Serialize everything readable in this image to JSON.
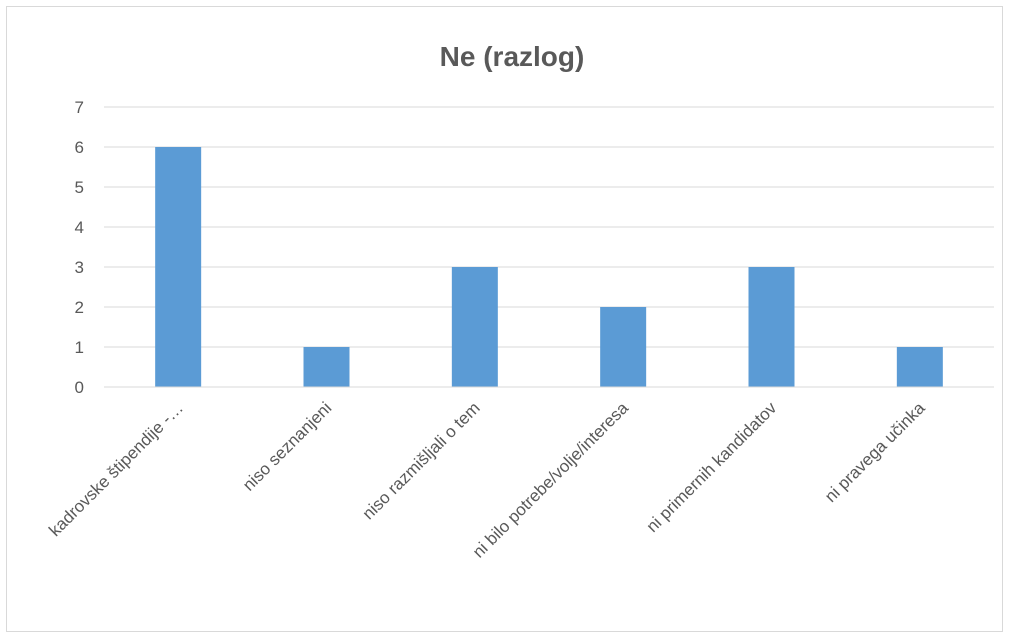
{
  "chart_data": {
    "type": "bar",
    "title": "Ne (razlog)",
    "xlabel": "",
    "ylabel": "",
    "categories": [
      "kadrovske štipendije -…",
      "niso seznanjeni",
      "niso razmišljali o tem",
      "ni bilo potrebe/volje/interesa",
      "ni primernih kandidatov",
      "ni pravega učinka"
    ],
    "values": [
      6,
      1,
      3,
      2,
      3,
      1
    ],
    "ylim": [
      0,
      7
    ],
    "yticks": [
      0,
      1,
      2,
      3,
      4,
      5,
      6,
      7
    ],
    "grid": true,
    "legend": "none",
    "bar_color": "#5b9bd5",
    "grid_color": "#d9d9d9",
    "text_color": "#595959"
  }
}
